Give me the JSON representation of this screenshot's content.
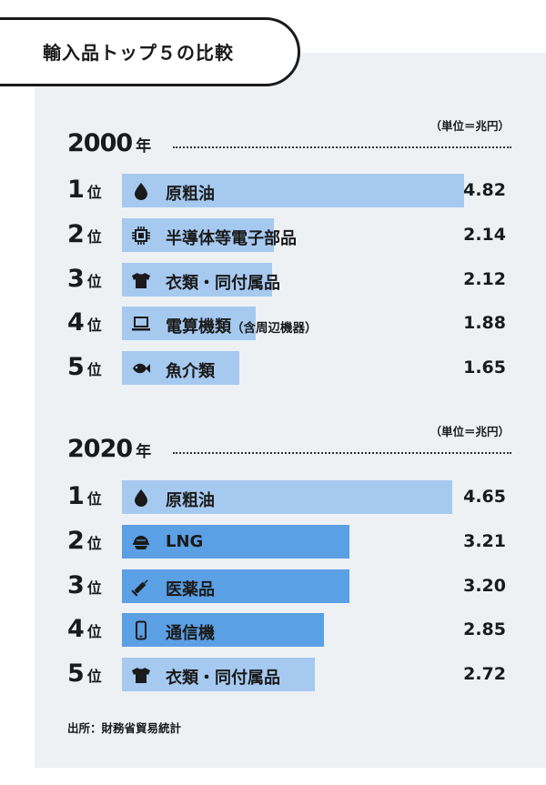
{
  "header": {
    "title": "輸入品トップ５の比較"
  },
  "footer": {
    "source": "出所：財務省貿易統計"
  },
  "colors": {
    "light_bar": "#a6c9f0",
    "dark_bar": "#5b9fe4",
    "panel": "#eef1f4",
    "ink": "#1a1a1a"
  },
  "chart_data": [
    {
      "type": "bar",
      "year_label": "2000",
      "year_suffix": "年",
      "unit": "（単位＝兆円）",
      "rank_suffix": "位",
      "xlim": [
        0,
        4.82
      ],
      "items": [
        {
          "rank": "1",
          "label": "原粗油",
          "label_note": "",
          "value": 4.82,
          "value_label": "4.82",
          "icon": "oil-drop-icon",
          "color": "#a6c9f0"
        },
        {
          "rank": "2",
          "label": "半導体等電子部品",
          "label_note": "",
          "value": 2.14,
          "value_label": "2.14",
          "icon": "chip-icon",
          "color": "#a6c9f0"
        },
        {
          "rank": "3",
          "label": "衣類・同付属品",
          "label_note": "",
          "value": 2.12,
          "value_label": "2.12",
          "icon": "shirt-icon",
          "color": "#a6c9f0"
        },
        {
          "rank": "4",
          "label": "電算機類",
          "label_note": "（含周辺機器）",
          "value": 1.88,
          "value_label": "1.88",
          "icon": "laptop-icon",
          "color": "#a6c9f0"
        },
        {
          "rank": "5",
          "label": "魚介類",
          "label_note": "",
          "value": 1.65,
          "value_label": "1.65",
          "icon": "fish-icon",
          "color": "#a6c9f0"
        }
      ]
    },
    {
      "type": "bar",
      "year_label": "2020",
      "year_suffix": "年",
      "unit": "（単位＝兆円）",
      "rank_suffix": "位",
      "xlim": [
        0,
        4.82
      ],
      "items": [
        {
          "rank": "1",
          "label": "原粗油",
          "label_note": "",
          "value": 4.65,
          "value_label": "4.65",
          "icon": "oil-drop-icon",
          "color": "#a6c9f0"
        },
        {
          "rank": "2",
          "label": "LNG",
          "label_note": "",
          "value": 3.21,
          "value_label": "3.21",
          "icon": "lng-tank-icon",
          "color": "#5b9fe4"
        },
        {
          "rank": "3",
          "label": "医薬品",
          "label_note": "",
          "value": 3.2,
          "value_label": "3.20",
          "icon": "syringe-icon",
          "color": "#5b9fe4"
        },
        {
          "rank": "4",
          "label": "通信機",
          "label_note": "",
          "value": 2.85,
          "value_label": "2.85",
          "icon": "smartphone-icon",
          "color": "#5b9fe4"
        },
        {
          "rank": "5",
          "label": "衣類・同付属品",
          "label_note": "",
          "value": 2.72,
          "value_label": "2.72",
          "icon": "shirt-icon",
          "color": "#a6c9f0"
        }
      ]
    }
  ]
}
